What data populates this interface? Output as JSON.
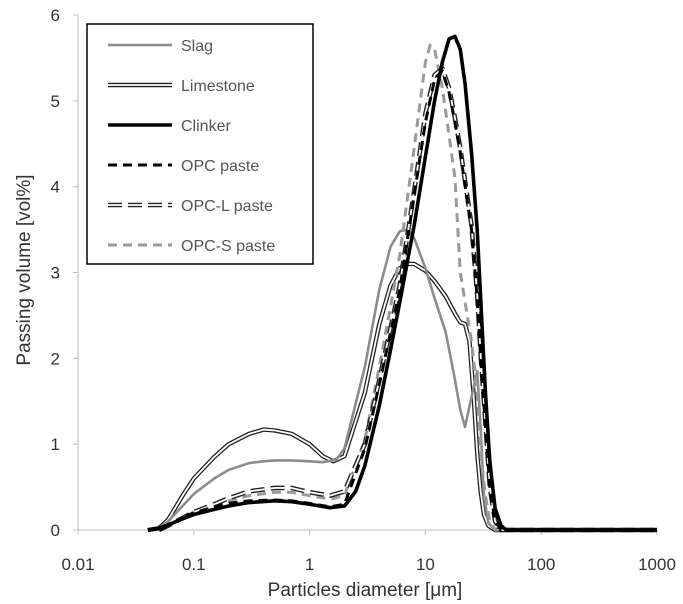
{
  "chart_data": {
    "type": "line",
    "title": "",
    "xlabel": "Particles diameter [μm]",
    "ylabel": "Passing volume [vol%]",
    "x_scale": "log",
    "xlim": [
      0.01,
      1000
    ],
    "ylim": [
      0,
      6
    ],
    "x_ticks": [
      "0.01",
      "0.1",
      "1",
      "10",
      "100",
      "1000"
    ],
    "y_ticks": [
      "0",
      "1",
      "2",
      "3",
      "4",
      "5",
      "6"
    ],
    "grid": false,
    "legend_position": "top-left",
    "series": [
      {
        "name": "Slag",
        "color": "#8c8c8c",
        "style": "solid",
        "x": [
          0.04,
          0.05,
          0.06,
          0.08,
          0.1,
          0.15,
          0.2,
          0.3,
          0.4,
          0.5,
          0.7,
          1,
          1.3,
          1.7,
          2,
          3,
          4,
          5,
          6,
          7,
          8,
          10,
          12,
          15,
          18,
          20,
          22,
          25,
          28,
          30,
          32,
          35,
          40,
          45,
          100,
          1000
        ],
        "y": [
          0,
          0.02,
          0.1,
          0.28,
          0.42,
          0.6,
          0.7,
          0.78,
          0.8,
          0.81,
          0.81,
          0.8,
          0.79,
          0.82,
          0.95,
          1.9,
          2.8,
          3.3,
          3.48,
          3.5,
          3.4,
          3.05,
          2.7,
          2.3,
          1.75,
          1.4,
          1.2,
          1.55,
          1.85,
          1.2,
          0.4,
          0.08,
          0,
          0,
          0,
          0
        ]
      },
      {
        "name": "Limestone",
        "color": "#222222",
        "style": "double",
        "x": [
          0.04,
          0.05,
          0.06,
          0.08,
          0.1,
          0.15,
          0.2,
          0.3,
          0.4,
          0.5,
          0.7,
          1,
          1.3,
          1.6,
          2,
          3,
          4,
          5,
          6,
          7,
          8,
          10,
          12,
          15,
          18,
          20,
          22,
          24,
          26,
          28,
          30,
          32,
          35,
          40,
          100,
          1000
        ],
        "y": [
          0,
          0.02,
          0.12,
          0.4,
          0.6,
          0.85,
          1.0,
          1.12,
          1.17,
          1.16,
          1.12,
          1.0,
          0.86,
          0.8,
          0.86,
          1.6,
          2.4,
          2.85,
          3.05,
          3.1,
          3.1,
          3.02,
          2.9,
          2.72,
          2.52,
          2.42,
          2.4,
          2.2,
          1.6,
          0.9,
          0.45,
          0.18,
          0.05,
          0,
          0,
          0
        ]
      },
      {
        "name": "Clinker",
        "color": "#000000",
        "style": "bold",
        "x": [
          0.04,
          0.05,
          0.06,
          0.08,
          0.1,
          0.15,
          0.2,
          0.3,
          0.5,
          0.7,
          1,
          1.5,
          2,
          2.5,
          3,
          4,
          5,
          6,
          8,
          10,
          12,
          14,
          16,
          18,
          20,
          22,
          25,
          28,
          30,
          33,
          36,
          40,
          45,
          50,
          100,
          1000
        ],
        "y": [
          0,
          0.02,
          0.06,
          0.13,
          0.18,
          0.24,
          0.28,
          0.32,
          0.34,
          0.33,
          0.3,
          0.26,
          0.28,
          0.45,
          0.75,
          1.45,
          2.1,
          2.65,
          3.55,
          4.35,
          5.0,
          5.45,
          5.72,
          5.75,
          5.6,
          5.2,
          4.4,
          3.5,
          2.7,
          1.6,
          0.8,
          0.25,
          0.05,
          0,
          0,
          0
        ]
      },
      {
        "name": "OPC paste",
        "color": "#000000",
        "style": "dashed",
        "x": [
          0.05,
          0.06,
          0.08,
          0.1,
          0.15,
          0.2,
          0.3,
          0.5,
          0.7,
          1,
          1.5,
          2,
          3,
          4,
          5,
          6,
          8,
          10,
          12,
          14,
          16,
          18,
          20,
          25,
          28,
          30,
          33,
          36,
          40,
          45,
          100,
          1000
        ],
        "y": [
          0,
          0.05,
          0.14,
          0.2,
          0.27,
          0.31,
          0.34,
          0.35,
          0.34,
          0.31,
          0.27,
          0.3,
          0.95,
          1.7,
          2.3,
          2.8,
          3.9,
          4.75,
          5.25,
          5.35,
          5.1,
          4.75,
          4.4,
          3.5,
          2.7,
          2.0,
          1.2,
          0.5,
          0.1,
          0,
          0,
          0
        ]
      },
      {
        "name": "OPC-L paste",
        "color": "#222222",
        "style": "double-dashed",
        "x": [
          0.05,
          0.06,
          0.08,
          0.1,
          0.15,
          0.2,
          0.3,
          0.5,
          0.7,
          1,
          1.5,
          2,
          3,
          4,
          5,
          6,
          8,
          10,
          12,
          14,
          16,
          18,
          20,
          25,
          28,
          30,
          33,
          36,
          40,
          45,
          100,
          1000
        ],
        "y": [
          0,
          0.05,
          0.14,
          0.21,
          0.3,
          0.37,
          0.45,
          0.49,
          0.49,
          0.44,
          0.4,
          0.45,
          1.0,
          1.75,
          2.35,
          2.85,
          3.95,
          4.85,
          5.3,
          5.38,
          5.15,
          4.8,
          4.45,
          3.55,
          2.75,
          2.05,
          1.25,
          0.5,
          0.1,
          0,
          0,
          0
        ]
      },
      {
        "name": "OPC-S paste",
        "color": "#9a9a9a",
        "style": "dashed",
        "x": [
          0.05,
          0.06,
          0.08,
          0.1,
          0.15,
          0.2,
          0.3,
          0.5,
          0.7,
          1,
          1.5,
          2,
          3,
          4,
          5,
          6,
          8,
          10,
          11,
          12,
          14,
          16,
          18,
          20,
          25,
          28,
          30,
          33,
          36,
          40,
          45,
          100,
          1000
        ],
        "y": [
          0,
          0.05,
          0.14,
          0.21,
          0.29,
          0.34,
          0.4,
          0.44,
          0.44,
          0.4,
          0.36,
          0.4,
          1.05,
          1.9,
          2.6,
          3.2,
          4.45,
          5.45,
          5.65,
          5.6,
          5.15,
          4.6,
          4.1,
          3.0,
          2.2,
          1.6,
          0.9,
          0.4,
          0.1,
          0,
          0,
          0,
          0
        ]
      }
    ]
  }
}
